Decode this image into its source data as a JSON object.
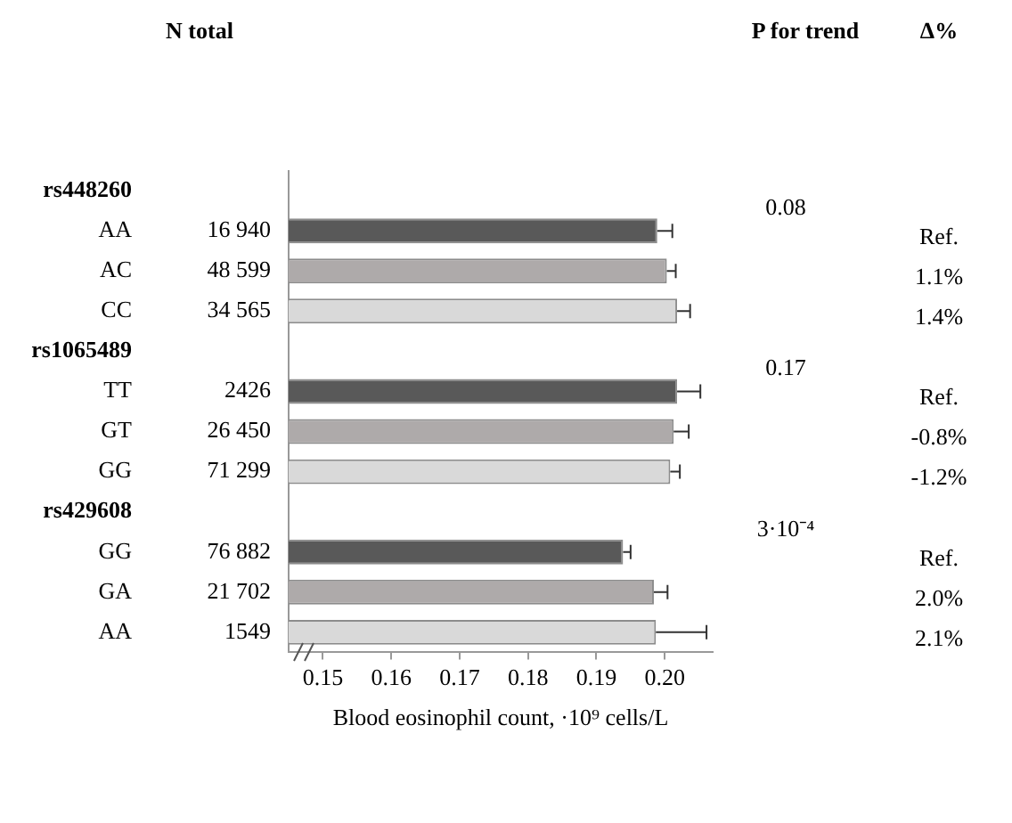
{
  "chart_data": {
    "type": "bar",
    "orientation": "horizontal",
    "xlabel": "Blood eosinophil count, ·10⁹ cells/L",
    "categories": [
      "rs448260",
      "AA",
      "AC",
      "CC",
      "rs1065489",
      "TT",
      "GT",
      "GG",
      "rs429608",
      "GG",
      "GA",
      "AA"
    ],
    "values": [
      null,
      0.1989,
      0.2003,
      0.2018,
      null,
      0.2018,
      0.2013,
      0.2008,
      null,
      0.1939,
      0.1984,
      0.1987
    ],
    "errors": [
      null,
      0.0022,
      0.0013,
      0.0019,
      null,
      0.0034,
      0.0022,
      0.0014,
      null,
      0.0011,
      0.002,
      0.0074
    ],
    "colors": [
      null,
      "#595959",
      "#aeaaaa",
      "#d9d9d9",
      null,
      "#595959",
      "#aeaaaa",
      "#d9d9d9",
      null,
      "#595959",
      "#aeaaaa",
      "#d9d9d9"
    ],
    "xlim": [
      0.145,
      0.207
    ],
    "xticks": [
      0.15,
      0.16,
      0.17,
      0.18,
      0.19,
      {
        "value": 0.2,
        "label": "0.20"
      }
    ],
    "grid": false,
    "annotations": [
      "N total",
      "P for trend",
      "Δ%",
      "16 940",
      "48 599",
      "34 565",
      "2426",
      "26 450",
      "71 299",
      "76 882",
      "21 702",
      "1549",
      "0.08",
      "0.17",
      "3·10⁻⁴",
      "Ref.",
      "1.1%",
      "1.4%",
      "Ref.",
      "-0.8%",
      "-1.2%",
      "Ref.",
      "2.0%",
      "2.1%"
    ]
  }
}
